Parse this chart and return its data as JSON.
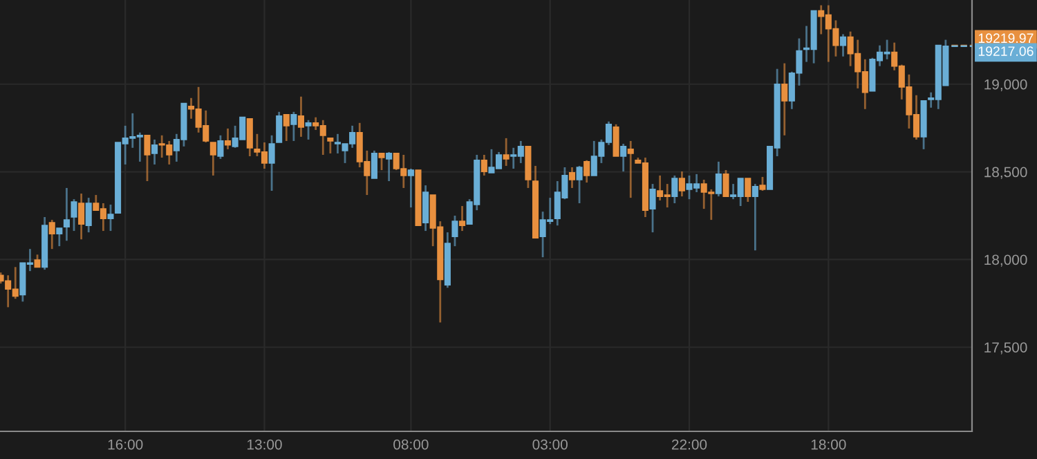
{
  "chart_data": {
    "type": "candlestick",
    "categories": [
      null,
      null,
      null,
      null,
      null,
      null,
      null,
      null,
      null,
      null,
      null,
      null,
      null,
      null,
      null,
      null,
      null,
      "16:00",
      null,
      null,
      null,
      null,
      null,
      null,
      null,
      null,
      null,
      null,
      null,
      null,
      null,
      null,
      null,
      null,
      null,
      null,
      "13:00",
      null,
      null,
      null,
      null,
      null,
      null,
      null,
      null,
      null,
      null,
      null,
      null,
      null,
      null,
      null,
      null,
      null,
      null,
      null,
      "08:00",
      null,
      null,
      null,
      null,
      null,
      null,
      null,
      null,
      null,
      null,
      null,
      null,
      null,
      null,
      null,
      null,
      null,
      null,
      "03:00",
      null,
      null,
      null,
      null,
      null,
      null,
      null,
      null,
      null,
      null,
      null,
      null,
      null,
      null,
      null,
      null,
      null,
      null,
      "22:00",
      null,
      null,
      null,
      null,
      null,
      null,
      null,
      null,
      null,
      null,
      null,
      null,
      null,
      null,
      null,
      null,
      null,
      null,
      "18:00",
      null,
      null,
      null,
      null,
      null,
      null,
      null,
      null,
      null,
      null,
      null,
      null,
      null,
      null,
      null,
      null
    ],
    "ohlc": [
      [
        17910,
        17926,
        17863,
        17878
      ],
      [
        17878,
        17910,
        17728,
        17831
      ],
      [
        17831,
        17957,
        17776,
        17791
      ],
      [
        17799,
        17981,
        17760,
        17981
      ],
      [
        17973,
        18060,
        17934,
        17981
      ],
      [
        17997,
        18028,
        17957,
        17957
      ],
      [
        17957,
        18242,
        17942,
        18194
      ],
      [
        18210,
        18226,
        18060,
        18147
      ],
      [
        18147,
        18179,
        18076,
        18179
      ],
      [
        18186,
        18408,
        18107,
        18226
      ],
      [
        18242,
        18344,
        18163,
        18329
      ],
      [
        18321,
        18376,
        18115,
        18202
      ],
      [
        18194,
        18352,
        18155,
        18321
      ],
      [
        18321,
        18368,
        18281,
        18281
      ],
      [
        18289,
        18321,
        18163,
        18234
      ],
      [
        18234,
        18313,
        18163,
        18258
      ],
      [
        18265,
        18668,
        18265,
        18668
      ],
      [
        18660,
        18763,
        18542,
        18692
      ],
      [
        18692,
        18834,
        18637,
        18700
      ],
      [
        18700,
        18724,
        18558,
        18708
      ],
      [
        18708,
        18708,
        18447,
        18597
      ],
      [
        18605,
        18684,
        18542,
        18653
      ],
      [
        18660,
        18708,
        18581,
        18653
      ],
      [
        18653,
        18676,
        18542,
        18597
      ],
      [
        18621,
        18716,
        18558,
        18684
      ],
      [
        18684,
        18890,
        18645,
        18890
      ],
      [
        18874,
        18921,
        18803,
        18858
      ],
      [
        18858,
        18984,
        18724,
        18755
      ],
      [
        18763,
        18850,
        18668,
        18676
      ],
      [
        18668,
        18668,
        18479,
        18597
      ],
      [
        18589,
        18708,
        18574,
        18676
      ],
      [
        18676,
        18747,
        18629,
        18653
      ],
      [
        18645,
        18763,
        18637,
        18692
      ],
      [
        18684,
        18811,
        18684,
        18811
      ],
      [
        18803,
        18803,
        18589,
        18637
      ],
      [
        18629,
        18716,
        18589,
        18613
      ],
      [
        18613,
        18668,
        18518,
        18550
      ],
      [
        18550,
        18708,
        18392,
        18660
      ],
      [
        18668,
        18842,
        18668,
        18818
      ],
      [
        18826,
        18826,
        18676,
        18763
      ],
      [
        18771,
        18842,
        18676,
        18826
      ],
      [
        18818,
        18929,
        18700,
        18755
      ],
      [
        18763,
        18795,
        18684,
        18779
      ],
      [
        18779,
        18811,
        18739,
        18763
      ],
      [
        18763,
        18795,
        18597,
        18708
      ],
      [
        18692,
        18692,
        18605,
        18676
      ],
      [
        18660,
        18716,
        18605,
        18668
      ],
      [
        18621,
        18660,
        18550,
        18660
      ],
      [
        18660,
        18763,
        18637,
        18724
      ],
      [
        18724,
        18779,
        18526,
        18558
      ],
      [
        18558,
        18621,
        18368,
        18479
      ],
      [
        18463,
        18621,
        18463,
        18605
      ],
      [
        18605,
        18605,
        18510,
        18581
      ],
      [
        18574,
        18613,
        18447,
        18605
      ],
      [
        18605,
        18605,
        18510,
        18518
      ],
      [
        18518,
        18597,
        18408,
        18479
      ],
      [
        18479,
        18518,
        18297,
        18510
      ],
      [
        18510,
        18510,
        18194,
        18194
      ],
      [
        18210,
        18423,
        18163,
        18384
      ],
      [
        18368,
        18368,
        18076,
        18179
      ],
      [
        18186,
        18218,
        17641,
        17886
      ],
      [
        17855,
        18155,
        17839,
        18092
      ],
      [
        18131,
        18250,
        18076,
        18218
      ],
      [
        18218,
        18305,
        18163,
        18194
      ],
      [
        18202,
        18344,
        18202,
        18329
      ],
      [
        18313,
        18597,
        18281,
        18566
      ],
      [
        18566,
        18597,
        18479,
        18502
      ],
      [
        18495,
        18629,
        18495,
        18526
      ],
      [
        18518,
        18613,
        18518,
        18597
      ],
      [
        18597,
        18692,
        18534,
        18574
      ],
      [
        18589,
        18637,
        18518,
        18597
      ],
      [
        18589,
        18676,
        18550,
        18645
      ],
      [
        18645,
        18645,
        18408,
        18455
      ],
      [
        18447,
        18534,
        18123,
        18123
      ],
      [
        18131,
        18273,
        18013,
        18226
      ],
      [
        18218,
        18352,
        18202,
        18226
      ],
      [
        18234,
        18447,
        18194,
        18384
      ],
      [
        18352,
        18526,
        18344,
        18479
      ],
      [
        18495,
        18526,
        18408,
        18455
      ],
      [
        18455,
        18534,
        18321,
        18526
      ],
      [
        18558,
        18566,
        18439,
        18479
      ],
      [
        18479,
        18676,
        18479,
        18589
      ],
      [
        18589,
        18684,
        18550,
        18668
      ],
      [
        18668,
        18787,
        18653,
        18771
      ],
      [
        18755,
        18771,
        18589,
        18589
      ],
      [
        18589,
        18660,
        18502,
        18645
      ],
      [
        18629,
        18676,
        18352,
        18605
      ],
      [
        18566,
        18581,
        18550,
        18550
      ],
      [
        18550,
        18581,
        18242,
        18281
      ],
      [
        18289,
        18431,
        18155,
        18400
      ],
      [
        18392,
        18479,
        18337,
        18360
      ],
      [
        18368,
        18431,
        18297,
        18360
      ],
      [
        18360,
        18479,
        18321,
        18463
      ],
      [
        18463,
        18502,
        18360,
        18392
      ],
      [
        18400,
        18479,
        18344,
        18431
      ],
      [
        18408,
        18487,
        18384,
        18431
      ],
      [
        18431,
        18455,
        18289,
        18384
      ],
      [
        18384,
        18400,
        18226,
        18376
      ],
      [
        18376,
        18558,
        18360,
        18487
      ],
      [
        18487,
        18510,
        18360,
        18360
      ],
      [
        18360,
        18431,
        18344,
        18368
      ],
      [
        18360,
        18463,
        18305,
        18463
      ],
      [
        18463,
        18463,
        18329,
        18360
      ],
      [
        18360,
        18431,
        18052,
        18416
      ],
      [
        18423,
        18471,
        18392,
        18400
      ],
      [
        18400,
        18645,
        18400,
        18645
      ],
      [
        18637,
        19087,
        18589,
        19000
      ],
      [
        19000,
        19119,
        18708,
        18905
      ],
      [
        18905,
        19071,
        18858,
        19063
      ],
      [
        19063,
        19261,
        18992,
        19190
      ],
      [
        19198,
        19332,
        19127,
        19206
      ],
      [
        19198,
        19419,
        19119,
        19419
      ],
      [
        19419,
        19450,
        19285,
        19387
      ],
      [
        19395,
        19450,
        19127,
        19316
      ],
      [
        19316,
        19364,
        19158,
        19221
      ],
      [
        19221,
        19285,
        19158,
        19269
      ],
      [
        19269,
        19300,
        19103,
        19174
      ],
      [
        19174,
        19253,
        18976,
        19071
      ],
      [
        19071,
        19142,
        18858,
        18953
      ],
      [
        18961,
        19150,
        18961,
        19142
      ],
      [
        19134,
        19221,
        19103,
        19182
      ],
      [
        19174,
        19253,
        19142,
        19182
      ],
      [
        19182,
        19237,
        19079,
        19103
      ],
      [
        19103,
        19111,
        18913,
        18984
      ],
      [
        18984,
        19055,
        18747,
        18826
      ],
      [
        18826,
        18937,
        18684,
        18700
      ],
      [
        18700,
        18905,
        18629,
        18905
      ],
      [
        18913,
        18953,
        18866,
        18921
      ],
      [
        18913,
        19221,
        18858,
        19221
      ],
      [
        18992,
        19253,
        18992,
        19217
      ]
    ],
    "colors": [
      "#e8903f",
      "#e8903f",
      "#e8903f",
      "#6aaed6",
      "#6aaed6",
      "#e8903f",
      "#6aaed6",
      "#e8903f",
      "#6aaed6",
      "#6aaed6",
      "#6aaed6",
      "#e8903f",
      "#6aaed6",
      "#e8903f",
      "#e8903f",
      "#6aaed6",
      "#6aaed6",
      "#6aaed6",
      "#6aaed6",
      "#6aaed6",
      "#e8903f",
      "#6aaed6",
      "#e8903f",
      "#e8903f",
      "#6aaed6",
      "#6aaed6",
      "#e8903f",
      "#e8903f",
      "#e8903f",
      "#e8903f",
      "#6aaed6",
      "#e8903f",
      "#6aaed6",
      "#6aaed6",
      "#e8903f",
      "#e8903f",
      "#e8903f",
      "#6aaed6",
      "#6aaed6",
      "#e8903f",
      "#6aaed6",
      "#e8903f",
      "#6aaed6",
      "#e8903f",
      "#e8903f",
      "#e8903f",
      "#6aaed6",
      "#6aaed6",
      "#6aaed6",
      "#e8903f",
      "#e8903f",
      "#6aaed6",
      "#e8903f",
      "#6aaed6",
      "#e8903f",
      "#e8903f",
      "#6aaed6",
      "#e8903f",
      "#6aaed6",
      "#e8903f",
      "#e8903f",
      "#6aaed6",
      "#6aaed6",
      "#e8903f",
      "#6aaed6",
      "#6aaed6",
      "#e8903f",
      "#6aaed6",
      "#6aaed6",
      "#e8903f",
      "#6aaed6",
      "#6aaed6",
      "#e8903f",
      "#e8903f",
      "#6aaed6",
      "#6aaed6",
      "#6aaed6",
      "#6aaed6",
      "#e8903f",
      "#6aaed6",
      "#e8903f",
      "#6aaed6",
      "#6aaed6",
      "#6aaed6",
      "#e8903f",
      "#6aaed6",
      "#e8903f",
      "#e8903f",
      "#e8903f",
      "#6aaed6",
      "#e8903f",
      "#e8903f",
      "#6aaed6",
      "#e8903f",
      "#6aaed6",
      "#6aaed6",
      "#e8903f",
      "#e8903f",
      "#6aaed6",
      "#e8903f",
      "#6aaed6",
      "#6aaed6",
      "#e8903f",
      "#6aaed6",
      "#e8903f",
      "#6aaed6",
      "#6aaed6",
      "#e8903f",
      "#6aaed6",
      "#6aaed6",
      "#6aaed6",
      "#6aaed6",
      "#e8903f",
      "#e8903f",
      "#e8903f",
      "#6aaed6",
      "#e8903f",
      "#e8903f",
      "#e8903f",
      "#6aaed6",
      "#6aaed6",
      "#6aaed6",
      "#e8903f",
      "#e8903f",
      "#e8903f",
      "#e8903f",
      "#6aaed6",
      "#6aaed6",
      "#6aaed6",
      "#6aaed6"
    ],
    "ylim": [
      17020,
      19480
    ],
    "yticks": [
      {
        "value": 17500,
        "label": "17,500"
      },
      {
        "value": 18000,
        "label": "18,000"
      },
      {
        "value": 18500,
        "label": "18,500"
      },
      {
        "value": 19000,
        "label": "19,000"
      }
    ],
    "grid": true,
    "ref_lines": [
      {
        "axis": "y",
        "value": 19219.97,
        "label": "19219.97",
        "color": "#e8903f",
        "line_style": "dashed"
      },
      {
        "axis": "y",
        "value": 19217.06,
        "label": "19217.06",
        "color": "#6aaed6",
        "line_style": "dashed"
      }
    ]
  }
}
